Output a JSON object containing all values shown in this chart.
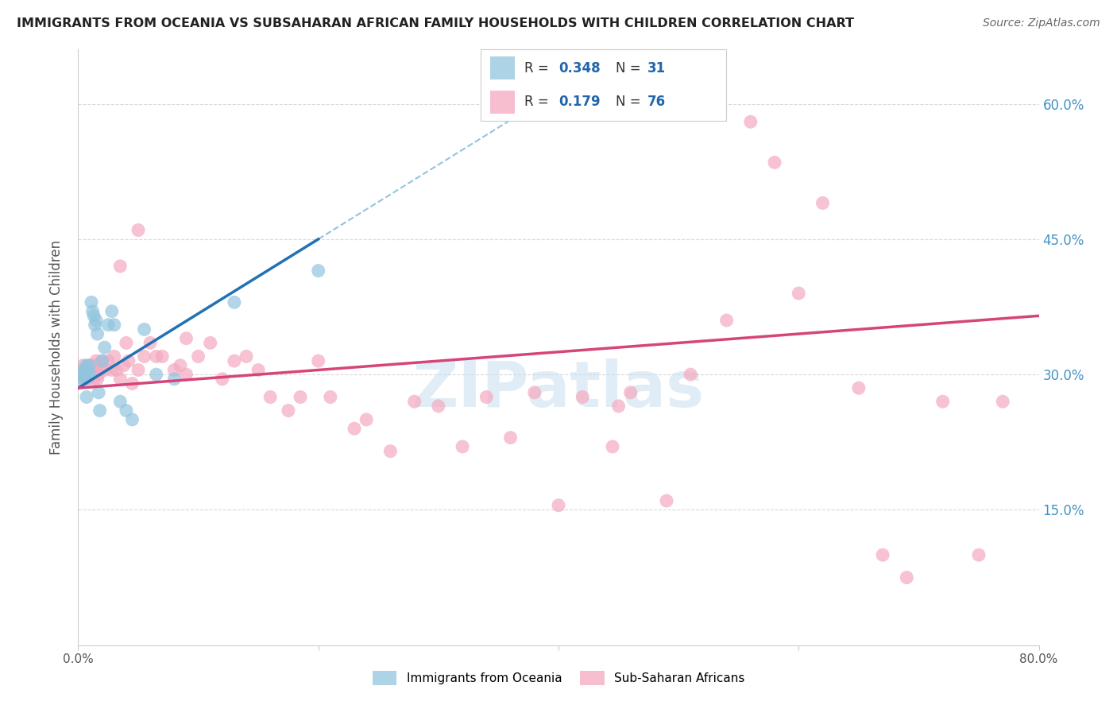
{
  "title": "IMMIGRANTS FROM OCEANIA VS SUBSAHARAN AFRICAN FAMILY HOUSEHOLDS WITH CHILDREN CORRELATION CHART",
  "source": "Source: ZipAtlas.com",
  "ylabel": "Family Households with Children",
  "right_yticks": [
    "60.0%",
    "45.0%",
    "30.0%",
    "15.0%"
  ],
  "right_ytick_vals": [
    0.6,
    0.45,
    0.3,
    0.15
  ],
  "legend_label1": "Immigrants from Oceania",
  "legend_label2": "Sub-Saharan Africans",
  "R1": "0.348",
  "N1": "31",
  "R2": "0.179",
  "N2": "76",
  "xmin": 0.0,
  "xmax": 0.8,
  "ymin": 0.0,
  "ymax": 0.66,
  "oceania_x": [
    0.002,
    0.003,
    0.004,
    0.005,
    0.006,
    0.007,
    0.007,
    0.008,
    0.009,
    0.01,
    0.011,
    0.012,
    0.013,
    0.014,
    0.015,
    0.016,
    0.017,
    0.018,
    0.02,
    0.022,
    0.025,
    0.028,
    0.03,
    0.035,
    0.04,
    0.045,
    0.055,
    0.065,
    0.08,
    0.13,
    0.2
  ],
  "oceania_y": [
    0.295,
    0.3,
    0.305,
    0.3,
    0.295,
    0.31,
    0.275,
    0.3,
    0.31,
    0.3,
    0.38,
    0.37,
    0.365,
    0.355,
    0.36,
    0.345,
    0.28,
    0.26,
    0.315,
    0.33,
    0.355,
    0.37,
    0.355,
    0.27,
    0.26,
    0.25,
    0.35,
    0.3,
    0.295,
    0.38,
    0.415
  ],
  "subsaharan_x": [
    0.003,
    0.004,
    0.005,
    0.006,
    0.007,
    0.008,
    0.009,
    0.01,
    0.011,
    0.012,
    0.013,
    0.014,
    0.015,
    0.016,
    0.017,
    0.018,
    0.02,
    0.022,
    0.025,
    0.028,
    0.03,
    0.032,
    0.035,
    0.038,
    0.04,
    0.042,
    0.045,
    0.05,
    0.055,
    0.06,
    0.065,
    0.07,
    0.08,
    0.085,
    0.09,
    0.1,
    0.11,
    0.12,
    0.13,
    0.14,
    0.15,
    0.16,
    0.175,
    0.185,
    0.2,
    0.21,
    0.23,
    0.24,
    0.26,
    0.28,
    0.3,
    0.32,
    0.34,
    0.36,
    0.38,
    0.4,
    0.42,
    0.445,
    0.46,
    0.49,
    0.51,
    0.54,
    0.56,
    0.58,
    0.6,
    0.62,
    0.65,
    0.67,
    0.69,
    0.72,
    0.75,
    0.77,
    0.035,
    0.05,
    0.09,
    0.45
  ],
  "subsaharan_y": [
    0.3,
    0.31,
    0.295,
    0.305,
    0.305,
    0.295,
    0.3,
    0.31,
    0.3,
    0.305,
    0.295,
    0.31,
    0.315,
    0.295,
    0.3,
    0.305,
    0.315,
    0.305,
    0.315,
    0.305,
    0.32,
    0.305,
    0.295,
    0.31,
    0.335,
    0.315,
    0.29,
    0.305,
    0.32,
    0.335,
    0.32,
    0.32,
    0.305,
    0.31,
    0.3,
    0.32,
    0.335,
    0.295,
    0.315,
    0.32,
    0.305,
    0.275,
    0.26,
    0.275,
    0.315,
    0.275,
    0.24,
    0.25,
    0.215,
    0.27,
    0.265,
    0.22,
    0.275,
    0.23,
    0.28,
    0.155,
    0.275,
    0.22,
    0.28,
    0.16,
    0.3,
    0.36,
    0.58,
    0.535,
    0.39,
    0.49,
    0.285,
    0.1,
    0.075,
    0.27,
    0.1,
    0.27,
    0.42,
    0.46,
    0.34,
    0.265
  ],
  "color_oceania": "#92c5de",
  "color_subsaharan": "#f4a9c0",
  "color_line_oceania": "#2171b5",
  "color_line_subsaharan": "#d6457a",
  "color_trend_dashed": "#92c5de",
  "bg_color": "#ffffff",
  "grid_color": "#d9d9d9",
  "title_color": "#222222",
  "tick_color_right": "#4292c6",
  "legend_R_color": "#2166ac",
  "watermark_text": "ZIPatlas",
  "watermark_color": "#c8dff0",
  "blue_line_x_end": 0.2,
  "dashed_line_x_start": 0.2
}
